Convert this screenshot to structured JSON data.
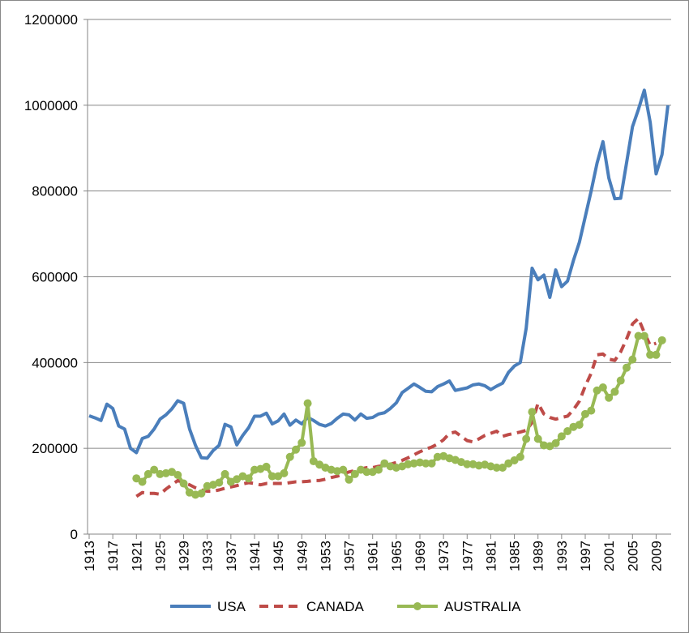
{
  "chart_data": {
    "type": "line",
    "x": [
      1913,
      1914,
      1915,
      1916,
      1917,
      1918,
      1919,
      1920,
      1921,
      1922,
      1923,
      1924,
      1925,
      1926,
      1927,
      1928,
      1929,
      1930,
      1931,
      1932,
      1933,
      1934,
      1935,
      1936,
      1937,
      1938,
      1939,
      1940,
      1941,
      1942,
      1943,
      1944,
      1945,
      1946,
      1947,
      1948,
      1949,
      1950,
      1951,
      1952,
      1953,
      1954,
      1955,
      1956,
      1957,
      1958,
      1959,
      1960,
      1961,
      1962,
      1963,
      1964,
      1965,
      1966,
      1967,
      1968,
      1969,
      1970,
      1971,
      1972,
      1973,
      1974,
      1975,
      1976,
      1977,
      1978,
      1979,
      1980,
      1981,
      1982,
      1983,
      1984,
      1985,
      1986,
      1987,
      1988,
      1989,
      1990,
      1991,
      1992,
      1993,
      1994,
      1995,
      1996,
      1997,
      1998,
      1999,
      2000,
      2001,
      2002,
      2003,
      2004,
      2005,
      2006,
      2007,
      2008,
      2009,
      2010,
      2011
    ],
    "xlim": [
      1913,
      2011
    ],
    "xticks": [
      1913,
      1917,
      1921,
      1925,
      1929,
      1933,
      1937,
      1941,
      1945,
      1949,
      1953,
      1957,
      1961,
      1965,
      1969,
      1973,
      1977,
      1981,
      1985,
      1989,
      1993,
      1997,
      2001,
      2005,
      2009
    ],
    "ylim": [
      0,
      1200000
    ],
    "yticks": [
      0,
      200000,
      400000,
      600000,
      800000,
      1000000,
      1200000
    ],
    "grid": true,
    "legend": "bottom",
    "series": [
      {
        "name": "USA",
        "color": "#4a7ebb",
        "style": "solid",
        "values": [
          276000,
          271000,
          265000,
          303000,
          293000,
          252000,
          245000,
          200000,
          190000,
          223000,
          228000,
          245000,
          268000,
          278000,
          292000,
          311000,
          305000,
          245000,
          207000,
          178000,
          177000,
          195000,
          207000,
          256000,
          250000,
          208000,
          230000,
          248000,
          275000,
          275000,
          282000,
          257000,
          264000,
          280000,
          254000,
          266000,
          257000,
          272000,
          265000,
          256000,
          252000,
          258000,
          270000,
          280000,
          278000,
          266000,
          280000,
          270000,
          272000,
          280000,
          283000,
          293000,
          306000,
          330000,
          340000,
          350000,
          342000,
          333000,
          332000,
          344000,
          350000,
          357000,
          335000,
          338000,
          341000,
          348000,
          350000,
          346000,
          337000,
          345000,
          352000,
          377000,
          392000,
          400000,
          480000,
          620000,
          593000,
          604000,
          552000,
          616000,
          577000,
          590000,
          638000,
          680000,
          740000,
          800000,
          865000,
          915000,
          830000,
          782000,
          783000,
          866000,
          950000,
          990000,
          1035000,
          960000,
          840000,
          885000,
          1000000
        ]
      },
      {
        "name": "CANADA",
        "color": "#be4b48",
        "style": "dashed",
        "values": [
          null,
          null,
          null,
          null,
          null,
          null,
          null,
          null,
          88000,
          97000,
          95000,
          95000,
          93000,
          105000,
          115000,
          125000,
          120000,
          115000,
          108000,
          103000,
          100000,
          100000,
          103000,
          107000,
          110000,
          113000,
          117000,
          120000,
          118000,
          115000,
          118000,
          118000,
          118000,
          118000,
          120000,
          122000,
          122000,
          123000,
          125000,
          125000,
          128000,
          132000,
          135000,
          140000,
          145000,
          148000,
          152000,
          155000,
          155000,
          158000,
          160000,
          163000,
          167000,
          172000,
          178000,
          185000,
          192000,
          198000,
          203000,
          210000,
          220000,
          235000,
          238000,
          228000,
          218000,
          215000,
          222000,
          230000,
          235000,
          240000,
          228000,
          232000,
          235000,
          238000,
          242000,
          260000,
          305000,
          280000,
          272000,
          268000,
          272000,
          275000,
          290000,
          310000,
          345000,
          375000,
          418000,
          420000,
          408000,
          405000,
          425000,
          455000,
          490000,
          503000,
          470000,
          440000,
          445000,
          null,
          null
        ]
      },
      {
        "name": "AUSTRALIA",
        "color": "#98b954",
        "style": "solid",
        "marker": "circle",
        "values": [
          null,
          null,
          null,
          null,
          null,
          null,
          null,
          null,
          130000,
          122000,
          140000,
          150000,
          140000,
          142000,
          145000,
          138000,
          118000,
          97000,
          92000,
          95000,
          112000,
          115000,
          120000,
          140000,
          122000,
          128000,
          135000,
          130000,
          150000,
          152000,
          157000,
          135000,
          135000,
          142000,
          180000,
          197000,
          213000,
          305000,
          170000,
          162000,
          155000,
          150000,
          147000,
          150000,
          127000,
          140000,
          150000,
          145000,
          145000,
          150000,
          165000,
          158000,
          155000,
          158000,
          163000,
          165000,
          167000,
          165000,
          165000,
          180000,
          182000,
          177000,
          173000,
          168000,
          163000,
          163000,
          160000,
          162000,
          158000,
          155000,
          155000,
          165000,
          172000,
          180000,
          222000,
          285000,
          222000,
          207000,
          205000,
          212000,
          228000,
          240000,
          250000,
          255000,
          280000,
          288000,
          335000,
          342000,
          318000,
          332000,
          358000,
          388000,
          407000,
          462000,
          462000,
          418000,
          418000,
          452000,
          null
        ]
      }
    ]
  }
}
